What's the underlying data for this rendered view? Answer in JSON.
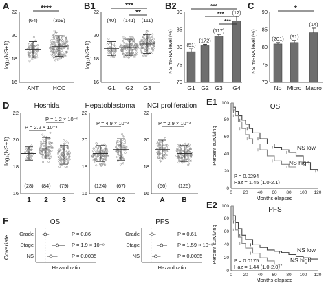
{
  "panels": {
    "A": {
      "label": "A",
      "ylabel": "log₂(NS+1)",
      "yticks": [
        "16",
        "18",
        "20",
        "22"
      ],
      "categories": [
        "ANT",
        "HCC"
      ],
      "counts": [
        "(64)",
        "(369)"
      ],
      "sig": "****"
    },
    "B1": {
      "label": "B1",
      "ylabel": "log₂(NS+1)",
      "yticks": [
        "16",
        "18",
        "20",
        "22"
      ],
      "categories": [
        "G1",
        "G2",
        "G3"
      ],
      "counts": [
        "(40)",
        "(141)",
        "(111)"
      ],
      "sig_top": "***",
      "sig_bottom": "**"
    },
    "B2": {
      "label": "B2",
      "ylabel": "NS mRNA level (%)",
      "yticks": [
        "70",
        "75",
        "80",
        "85",
        "90"
      ],
      "categories": [
        "G1",
        "G2",
        "G3",
        "G4"
      ],
      "counts": [
        "(51)",
        "(172)",
        "(117)",
        "(12)"
      ],
      "sig": "***"
    },
    "C": {
      "label": "C",
      "ylabel": "NS mRNA level (%)",
      "yticks": [
        "70",
        "75",
        "80",
        "85",
        "90"
      ],
      "categories": [
        "No",
        "Micro",
        "Macro"
      ],
      "counts": [
        "(201)",
        "(91)",
        "(14)"
      ],
      "sig": "*"
    },
    "D": {
      "label": "D",
      "ylabel": "log₂(NS+1)",
      "yticks": [
        "16",
        "18",
        "20",
        "22"
      ],
      "subpanels": [
        {
          "title": "Hoshida",
          "categories": [
            "1",
            "2",
            "3"
          ],
          "counts": [
            "(28)",
            "(84)",
            "(79)"
          ],
          "p_values": [
            "P = 1.2 × 10⁻⁵",
            "P = 2.2 × 10⁻³"
          ]
        },
        {
          "title": "Hepatoblastoma",
          "categories": [
            "C1",
            "C2"
          ],
          "counts": [
            "(124)",
            "(67)"
          ],
          "p_values": [
            "P = 4.9 × 10⁻⁴"
          ]
        },
        {
          "title": "NCI proliferation",
          "categories": [
            "A",
            "B"
          ],
          "counts": [
            "(66)",
            "(125)"
          ],
          "p_values": [
            "P = 2.9 × 10⁻⁴"
          ]
        }
      ]
    },
    "E1": {
      "label": "E1",
      "title": "OS",
      "ylabel": "Percent surviving",
      "xlabel": "Months elapsed",
      "yticks": [
        "0",
        "20",
        "40",
        "60",
        "80",
        "100"
      ],
      "xticks": [
        "0",
        "20",
        "40",
        "60",
        "80",
        "100",
        "120"
      ],
      "legend": [
        "NS low",
        "NS high"
      ],
      "p": "P = 0.0294",
      "haz": "Haz = 1.45 (1.0-2.1)"
    },
    "E2": {
      "label": "E2",
      "title": "PFS",
      "ylabel": "Percent surviving",
      "xlabel": "Months elapsed",
      "yticks": [
        "0",
        "20",
        "40",
        "60",
        "80",
        "100"
      ],
      "xticks": [
        "0",
        "20",
        "40",
        "60",
        "80",
        "100",
        "120"
      ],
      "legend": [
        "NS low",
        "NS high"
      ],
      "p": "P = 0.0175",
      "haz": "Haz = 1.44 (1.0-2.0)"
    },
    "F": {
      "label": "F",
      "ylabel": "Covariate",
      "xlabel": "Hazard ratio",
      "covariates": [
        "Grade",
        "Stage",
        "NS"
      ],
      "os": {
        "title": "OS",
        "p_values": [
          "P = 0.86",
          "P = 1.9 × 10⁻⁹",
          "P = 0.0035"
        ]
      },
      "pfs": {
        "title": "PFS",
        "p_values": [
          "P = 0.61",
          "P = 1.59 × 10⁻⁸",
          "P = 0.0085"
        ]
      }
    }
  },
  "chart_data": [
    {
      "type": "scatter",
      "panel": "A",
      "categories": [
        "ANT",
        "HCC"
      ],
      "n": [
        64,
        369
      ],
      "mean": [
        18.8,
        19.1
      ],
      "sd": [
        0.7,
        0.9
      ],
      "ylim": [
        16,
        22
      ],
      "ylabel": "log₂(NS+1)"
    },
    {
      "type": "scatter",
      "panel": "B1",
      "categories": [
        "G1",
        "G2",
        "G3"
      ],
      "n": [
        40,
        141,
        111
      ],
      "mean": [
        18.9,
        19.0,
        19.3
      ],
      "sd": [
        0.6,
        0.7,
        0.8
      ],
      "ylim": [
        16,
        22
      ],
      "ylabel": "log₂(NS+1)"
    },
    {
      "type": "bar",
      "panel": "B2",
      "categories": [
        "G1",
        "G2",
        "G3",
        "G4"
      ],
      "n": [
        51,
        172,
        117,
        12
      ],
      "values": [
        78.8,
        80.5,
        83.2,
        87.5
      ],
      "errors": [
        0.8,
        0.4,
        0.5,
        1.3
      ],
      "ylim": [
        70,
        90
      ],
      "ylabel": "NS mRNA level (%)"
    },
    {
      "type": "bar",
      "panel": "C",
      "categories": [
        "No",
        "Micro",
        "Macro"
      ],
      "n": [
        201,
        91,
        14
      ],
      "values": [
        81.0,
        81.4,
        84.2
      ],
      "errors": [
        0.4,
        0.6,
        1.3
      ],
      "ylim": [
        70,
        90
      ],
      "ylabel": "NS mRNA level (%)"
    },
    {
      "type": "scatter",
      "panel": "D-Hoshida",
      "categories": [
        "1",
        "2",
        "3"
      ],
      "n": [
        28,
        84,
        79
      ],
      "mean": [
        19.0,
        19.4,
        18.9
      ],
      "sd": [
        0.5,
        0.8,
        0.7
      ],
      "ylim": [
        16,
        22
      ]
    },
    {
      "type": "scatter",
      "panel": "D-Hepatoblastoma",
      "categories": [
        "C1",
        "C2"
      ],
      "n": [
        124,
        67
      ],
      "mean": [
        19.0,
        19.3
      ],
      "sd": [
        0.6,
        0.8
      ],
      "ylim": [
        16,
        22
      ]
    },
    {
      "type": "scatter",
      "panel": "D-NCI proliferation",
      "categories": [
        "A",
        "B"
      ],
      "n": [
        66,
        125
      ],
      "mean": [
        19.3,
        19.0
      ],
      "sd": [
        0.7,
        0.6
      ],
      "ylim": [
        16,
        22
      ]
    },
    {
      "type": "line",
      "panel": "E1",
      "title": "OS",
      "xlabel": "Months elapsed",
      "ylabel": "Percent surviving",
      "xlim": [
        0,
        120
      ],
      "ylim": [
        0,
        100
      ],
      "series": [
        {
          "name": "NS low",
          "x": [
            0,
            3,
            6,
            10,
            15,
            20,
            25,
            30,
            40,
            50,
            60,
            70,
            80,
            90,
            100,
            110,
            120
          ],
          "y": [
            100,
            95,
            90,
            85,
            80,
            75,
            70,
            65,
            58,
            52,
            48,
            45,
            42,
            38,
            30,
            22,
            20
          ]
        },
        {
          "name": "NS high",
          "x": [
            0,
            3,
            6,
            10,
            15,
            20,
            25,
            30,
            40,
            50,
            60,
            70,
            80,
            90
          ],
          "y": [
            100,
            92,
            85,
            78,
            70,
            63,
            58,
            52,
            45,
            38,
            32,
            28,
            25,
            25
          ]
        }
      ]
    },
    {
      "type": "line",
      "panel": "E2",
      "title": "PFS",
      "xlabel": "Months elapsed",
      "ylabel": "Percent surviving",
      "xlim": [
        0,
        120
      ],
      "ylim": [
        0,
        100
      ],
      "series": [
        {
          "name": "NS low",
          "x": [
            0,
            3,
            6,
            10,
            15,
            20,
            30,
            40,
            50,
            60,
            70,
            80,
            90,
            100,
            110,
            120
          ],
          "y": [
            100,
            85,
            75,
            65,
            55,
            48,
            40,
            36,
            32,
            30,
            28,
            25,
            22,
            20,
            18,
            18
          ]
        },
        {
          "name": "NS high",
          "x": [
            0,
            3,
            6,
            10,
            15,
            20,
            30,
            40,
            50,
            60,
            70
          ],
          "y": [
            100,
            78,
            63,
            52,
            42,
            35,
            27,
            20,
            15,
            10,
            8
          ]
        }
      ]
    },
    {
      "type": "scatter",
      "panel": "F-OS",
      "title": "OS",
      "covariates": [
        "Grade",
        "Stage",
        "NS"
      ],
      "hazard_ratio": [
        1.0,
        2.3,
        1.6
      ],
      "ci_low": [
        0.7,
        1.7,
        1.2
      ],
      "ci_high": [
        1.4,
        3.1,
        2.3
      ],
      "p_values": [
        "0.86",
        "1.9 × 10⁻⁹",
        "0.0035"
      ],
      "reference": 1.0
    },
    {
      "type": "scatter",
      "panel": "F-PFS",
      "title": "PFS",
      "covariates": [
        "Grade",
        "Stage",
        "NS"
      ],
      "hazard_ratio": [
        1.1,
        2.1,
        1.5
      ],
      "ci_low": [
        0.8,
        1.6,
        1.1
      ],
      "ci_high": [
        1.5,
        2.7,
        2.0
      ],
      "p_values": [
        "0.61",
        "1.59 × 10⁻⁸",
        "0.0085"
      ],
      "reference": 1.0
    }
  ]
}
